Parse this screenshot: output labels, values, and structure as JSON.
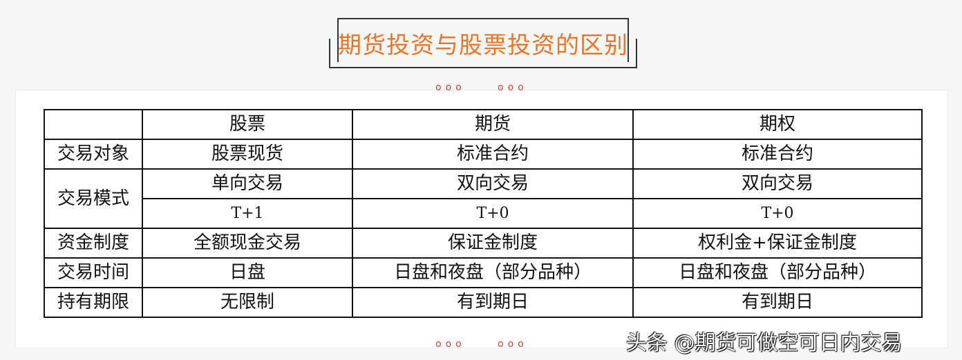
{
  "title": "期货投资与股票投资的区别",
  "dots": "ooo",
  "colors": {
    "title": "#e8752a",
    "dots": "#d0453a"
  },
  "table": {
    "headers": [
      "",
      "股票",
      "期货",
      "期权"
    ],
    "rows": {
      "object": {
        "label": "交易对象",
        "values": [
          "股票现货",
          "标准合约",
          "标准合约"
        ]
      },
      "mode": {
        "label": "交易模式",
        "direction": [
          "单向交易",
          "双向交易",
          "双向交易"
        ],
        "settlement": [
          "T+1",
          "T+0",
          "T+0"
        ]
      },
      "funds": {
        "label": "资金制度",
        "values": [
          "全额现金交易",
          "保证金制度",
          "权利金+保证金制度"
        ]
      },
      "time": {
        "label": "交易时间",
        "values": [
          "日盘",
          "日盘和夜盘（部分品种）",
          "日盘和夜盘（部分品种）"
        ]
      },
      "term": {
        "label": "持有期限",
        "values": [
          "无限制",
          "有到期日",
          "有到期日"
        ]
      }
    }
  },
  "watermark": "头条 @期货可做空可日内交易"
}
